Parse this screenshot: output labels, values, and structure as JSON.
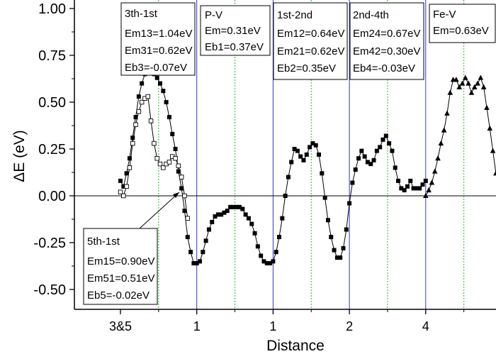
{
  "chart_data": {
    "type": "line",
    "xlabel": "Distance",
    "ylabel": "ΔE (eV)",
    "ylim": [
      -0.5,
      1.15
    ],
    "xlim": [
      -0.1,
      5.0
    ],
    "yticks": [
      -0.5,
      -0.25,
      0.0,
      0.25,
      0.5,
      0.75,
      1.0
    ],
    "ytick_labels": [
      "-0.50",
      "-0.25",
      "0.00",
      "0.25",
      "0.50",
      "0.75",
      "1.00"
    ],
    "xticks": [
      0,
      1,
      2,
      3,
      4
    ],
    "xtick_labels": [
      "3&5",
      "1",
      "1",
      "2",
      "4"
    ],
    "boundaries": [
      1,
      2,
      3,
      4
    ],
    "midlines": [
      0.5,
      1.5,
      2.5,
      3.5,
      4.5
    ],
    "grid": false,
    "series": [
      {
        "marker": "square-filled",
        "x": [
          0.0,
          0.04,
          0.08,
          0.12,
          0.16,
          0.2,
          0.24,
          0.28,
          0.32,
          0.36,
          0.4,
          0.44,
          0.48,
          0.52,
          0.56,
          0.6,
          0.64,
          0.68,
          0.72,
          0.76,
          0.8,
          0.84,
          0.88,
          0.92,
          0.96,
          1.0,
          1.04,
          1.08,
          1.12,
          1.16,
          1.2,
          1.24,
          1.28,
          1.32,
          1.36,
          1.4,
          1.44,
          1.48,
          1.52,
          1.56,
          1.6,
          1.64,
          1.68,
          1.72,
          1.76,
          1.8,
          1.84,
          1.88,
          1.92,
          1.96,
          2.0,
          2.04,
          2.08,
          2.12,
          2.16,
          2.2,
          2.24,
          2.28,
          2.32,
          2.36,
          2.4,
          2.44,
          2.48,
          2.52,
          2.56,
          2.6,
          2.64,
          2.68,
          2.72,
          2.76,
          2.8,
          2.84,
          2.88,
          2.92,
          2.96,
          3.0,
          3.04,
          3.08,
          3.12,
          3.16,
          3.2,
          3.24,
          3.28,
          3.32,
          3.36,
          3.4,
          3.44,
          3.48,
          3.52,
          3.56,
          3.6,
          3.64,
          3.68,
          3.72,
          3.76,
          3.8,
          3.84,
          3.88,
          3.92,
          3.96,
          4.0
        ],
        "y": [
          0.08,
          0.05,
          0.12,
          0.2,
          0.31,
          0.42,
          0.53,
          0.6,
          0.65,
          0.69,
          0.68,
          0.65,
          0.63,
          0.6,
          0.56,
          0.5,
          0.42,
          0.33,
          0.25,
          0.13,
          0.04,
          -0.08,
          -0.22,
          -0.3,
          -0.36,
          -0.36,
          -0.35,
          -0.3,
          -0.24,
          -0.18,
          -0.14,
          -0.11,
          -0.1,
          -0.1,
          -0.09,
          -0.08,
          -0.06,
          -0.06,
          -0.06,
          -0.06,
          -0.07,
          -0.1,
          -0.12,
          -0.15,
          -0.2,
          -0.27,
          -0.32,
          -0.35,
          -0.36,
          -0.36,
          -0.35,
          -0.3,
          -0.22,
          -0.12,
          0.0,
          0.1,
          0.18,
          0.25,
          0.24,
          0.21,
          0.19,
          0.22,
          0.26,
          0.28,
          0.27,
          0.22,
          0.12,
          -0.01,
          -0.13,
          -0.22,
          -0.29,
          -0.33,
          -0.33,
          -0.28,
          -0.18,
          -0.04,
          0.07,
          0.14,
          0.2,
          0.24,
          0.21,
          0.18,
          0.17,
          0.19,
          0.24,
          0.26,
          0.3,
          0.32,
          0.28,
          0.24,
          0.15,
          0.08,
          0.04,
          0.03,
          0.05,
          0.08,
          0.04,
          0.04,
          0.04,
          0.06,
          0.08
        ]
      },
      {
        "marker": "square-open",
        "x": [
          0.0,
          0.04,
          0.08,
          0.12,
          0.16,
          0.2,
          0.24,
          0.28,
          0.32,
          0.36,
          0.4,
          0.44,
          0.48,
          0.52,
          0.56,
          0.6,
          0.64,
          0.68,
          0.72,
          0.76,
          0.8,
          0.84,
          0.88
        ],
        "y": [
          0.02,
          0.0,
          0.05,
          0.15,
          0.28,
          0.38,
          0.45,
          0.5,
          0.52,
          0.53,
          0.4,
          0.28,
          0.2,
          0.17,
          0.15,
          0.17,
          0.18,
          0.21,
          0.2,
          0.16,
          0.1,
          0.0,
          -0.12
        ]
      },
      {
        "marker": "triangle-filled",
        "x": [
          4.0,
          4.04,
          4.08,
          4.12,
          4.16,
          4.2,
          4.24,
          4.28,
          4.32,
          4.36,
          4.4,
          4.44,
          4.48,
          4.52,
          4.56,
          4.6,
          4.64,
          4.68,
          4.72,
          4.76,
          4.8,
          4.84,
          4.88,
          4.92,
          4.96,
          5.0
        ],
        "y": [
          0.0,
          0.03,
          0.07,
          0.13,
          0.2,
          0.28,
          0.35,
          0.44,
          0.55,
          0.62,
          0.62,
          0.58,
          0.6,
          0.63,
          0.6,
          0.55,
          0.58,
          0.6,
          0.63,
          0.58,
          0.47,
          0.36,
          0.24,
          0.12,
          0.05,
          0.02
        ]
      }
    ],
    "annotations": [
      {
        "lines": [
          "3th-1st",
          "Em13=1.04eV",
          "Em31=0.62eV",
          "Eb3=-0.07eV"
        ]
      },
      {
        "lines": [
          "P-V",
          "Em=0.31eV",
          "Eb1=0.37eV"
        ]
      },
      {
        "lines": [
          "1st-2nd",
          "Em12=0.64eV",
          "Em21=0.62eV",
          "Eb2=0.35eV"
        ]
      },
      {
        "lines": [
          "2nd-4th",
          "Em24=0.67eV",
          "Em42=0.30eV",
          "Eb4=-0.03eV"
        ]
      },
      {
        "lines": [
          "Fe-V",
          "Em=0.63eV"
        ]
      },
      {
        "lines": [
          "5th-1st",
          "Em15=0.90eV",
          "Em51=0.51eV",
          "Eb5=-0.02eV"
        ]
      }
    ]
  }
}
